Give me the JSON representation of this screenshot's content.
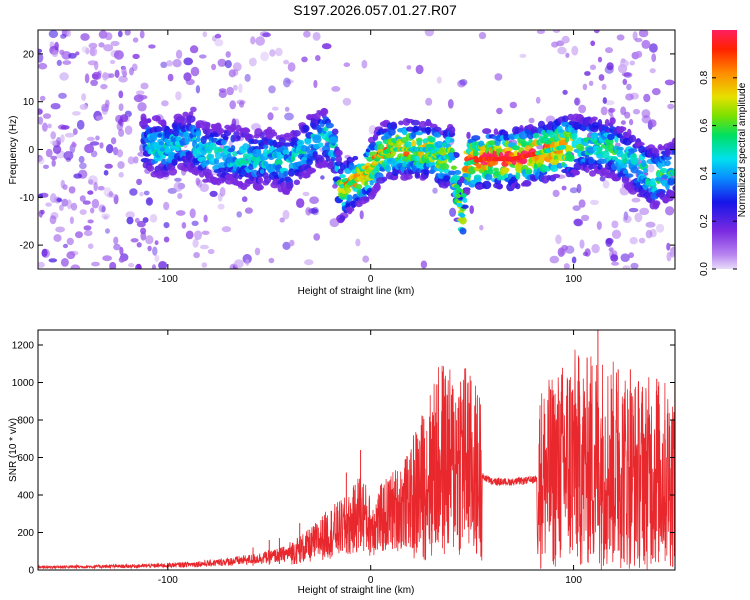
{
  "title": "S197.2026.057.01.27.R07",
  "chart_data": [
    {
      "type": "heatmap",
      "xlabel": "Height of straight line (km)",
      "ylabel": "Frequency (Hz)",
      "xlim": [
        -164,
        150
      ],
      "ylim": [
        -25,
        25
      ],
      "xticks": [
        -100,
        0,
        100
      ],
      "yticks": [
        20,
        10,
        0,
        -10,
        -20
      ],
      "xtick_labels": [
        "-100",
        "0",
        "100"
      ],
      "ytick_labels": [
        "20",
        "10",
        "0",
        "-10",
        "-20"
      ],
      "colorbar": {
        "label": "Normalized spectral amplitude",
        "range": [
          0,
          1
        ],
        "ticks": [
          0.0,
          0.2,
          0.4,
          0.6,
          0.8
        ],
        "tick_labels": [
          "0.0",
          "0.2",
          "0.4",
          "0.6",
          "0.8"
        ]
      },
      "ridge": [
        [
          -110,
          1
        ],
        [
          -100,
          0
        ],
        [
          -90,
          2
        ],
        [
          -80,
          -1
        ],
        [
          -70,
          -1
        ],
        [
          -60,
          -2
        ],
        [
          -50,
          -2
        ],
        [
          -40,
          -3
        ],
        [
          -30,
          1
        ],
        [
          -22,
          3
        ],
        [
          -18,
          1
        ],
        [
          -15,
          -9
        ],
        [
          -10,
          -7
        ],
        [
          -5,
          -6
        ],
        [
          0,
          -4
        ],
        [
          5,
          -1
        ],
        [
          10,
          0
        ],
        [
          20,
          0
        ],
        [
          30,
          0
        ],
        [
          35,
          -2
        ],
        [
          40,
          -1
        ],
        [
          45,
          -15
        ],
        [
          47,
          -3
        ],
        [
          55,
          -2
        ],
        [
          60,
          -2
        ],
        [
          70,
          -2
        ],
        [
          80,
          -1
        ],
        [
          90,
          0
        ],
        [
          100,
          1
        ],
        [
          110,
          1
        ],
        [
          120,
          0
        ],
        [
          130,
          -3
        ],
        [
          140,
          -6
        ],
        [
          150,
          -4
        ]
      ]
    },
    {
      "type": "line",
      "xlabel": "Height of straight line (km)",
      "ylabel": "SNR (10 * v/v)",
      "xlim": [
        -164,
        150
      ],
      "ylim": [
        0,
        1280
      ],
      "xticks": [
        -100,
        0,
        100
      ],
      "yticks": [
        0,
        200,
        400,
        600,
        800,
        1000,
        1200
      ],
      "xtick_labels": [
        "-100",
        "0",
        "100"
      ],
      "ytick_labels": [
        "0",
        "200",
        "400",
        "600",
        "800",
        "1000",
        "1200"
      ],
      "series_color": "#e8282d",
      "envelope": [
        [
          -164,
          15
        ],
        [
          -140,
          18
        ],
        [
          -120,
          20
        ],
        [
          -100,
          25
        ],
        [
          -80,
          35
        ],
        [
          -60,
          55
        ],
        [
          -50,
          70
        ],
        [
          -40,
          90
        ],
        [
          -30,
          130
        ],
        [
          -20,
          200
        ],
        [
          -10,
          240
        ],
        [
          -5,
          320
        ],
        [
          0,
          230
        ],
        [
          5,
          270
        ],
        [
          10,
          310
        ],
        [
          15,
          340
        ],
        [
          20,
          380
        ],
        [
          25,
          440
        ],
        [
          30,
          520
        ],
        [
          35,
          600
        ],
        [
          40,
          560
        ],
        [
          45,
          620
        ],
        [
          50,
          540
        ],
        [
          55,
          500
        ],
        [
          60,
          470
        ],
        [
          70,
          470
        ],
        [
          80,
          480
        ],
        [
          85,
          500
        ],
        [
          90,
          520
        ],
        [
          95,
          560
        ],
        [
          100,
          600
        ],
        [
          105,
          560
        ],
        [
          110,
          600
        ],
        [
          115,
          580
        ],
        [
          120,
          560
        ],
        [
          130,
          520
        ],
        [
          140,
          520
        ],
        [
          150,
          500
        ]
      ],
      "spikes": [
        [
          -58,
          120
        ],
        [
          -50,
          160
        ],
        [
          -45,
          170
        ],
        [
          -35,
          250
        ],
        [
          -12,
          520
        ],
        [
          -5,
          640
        ],
        [
          17,
          590
        ],
        [
          30,
          700
        ],
        [
          32,
          840
        ],
        [
          38,
          930
        ],
        [
          48,
          1000
        ],
        [
          52,
          710
        ],
        [
          88,
          980
        ],
        [
          98,
          920
        ],
        [
          103,
          930
        ],
        [
          112,
          1300
        ],
        [
          122,
          1070
        ],
        [
          128,
          1070
        ],
        [
          134,
          770
        ],
        [
          141,
          1020
        ],
        [
          145,
          800
        ],
        [
          150,
          790
        ]
      ]
    }
  ]
}
